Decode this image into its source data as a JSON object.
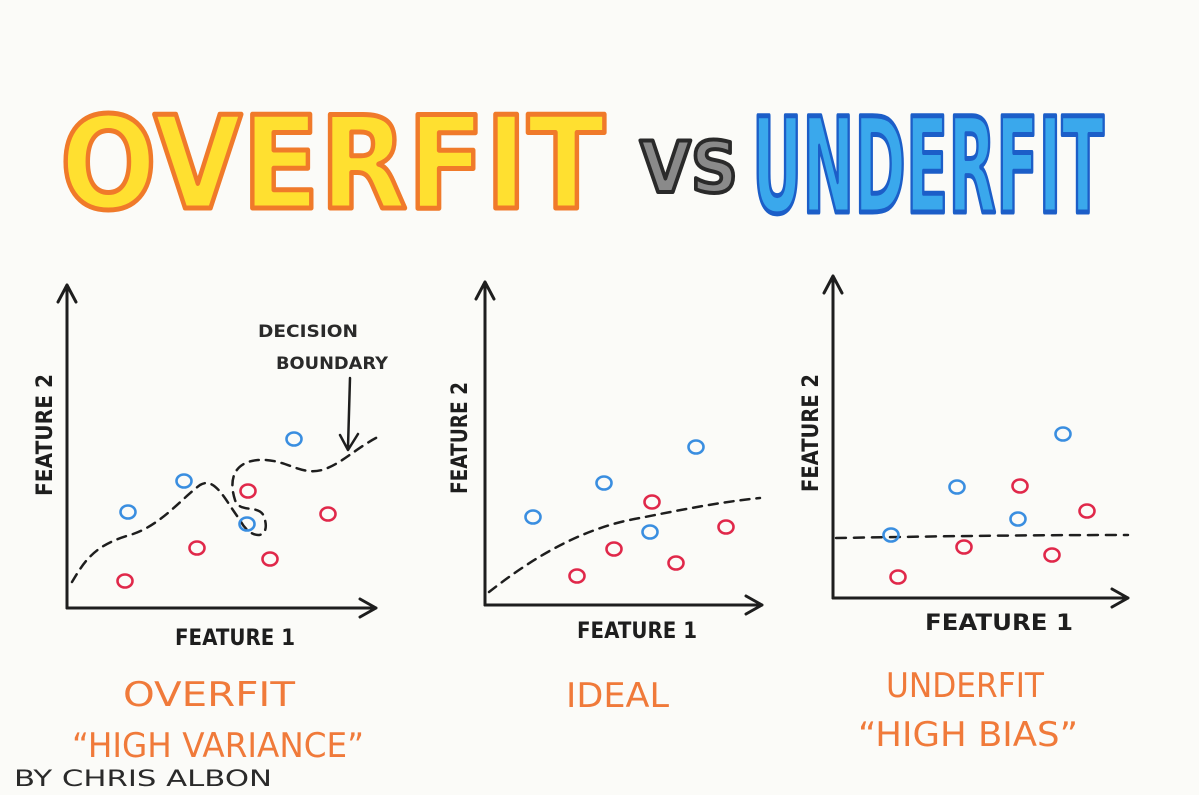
{
  "title": {
    "overfit": "OVERFIT",
    "vs": "VS",
    "underfit": "UNDERFIT"
  },
  "colors": {
    "overfit_fill": "#ffe030",
    "overfit_stroke": "#f07a2a",
    "vs_fill": "#8a8a8a",
    "vs_stroke": "#2a2a2a",
    "underfit_fill": "#3aa8ec",
    "underfit_stroke": "#1c5ec8",
    "red_point": "#e0284a",
    "blue_point": "#3a8ee0",
    "caption": "#f07a3a",
    "ink": "#1e1e1e"
  },
  "panels": [
    {
      "x_label": "FEATURE 1",
      "y_label": "FEATURE 2",
      "caption_line1": "OVERFIT",
      "caption_line2": "“HIGH VARIANCE”",
      "annotation_line1": "DECISION",
      "annotation_line2": "BOUNDARY",
      "boundary": "wiggly"
    },
    {
      "x_label": "FEATURE 1",
      "y_label": "FEATURE 2",
      "caption_line1": "IDEAL",
      "caption_line2": "",
      "boundary": "curve"
    },
    {
      "x_label": "FEATURE 1",
      "y_label": "FEATURE 2",
      "caption_line1": "UNDERFIT",
      "caption_line2": "“HIGH BIAS”",
      "boundary": "flat"
    }
  ],
  "credit": "BY CHRIS ALBON"
}
